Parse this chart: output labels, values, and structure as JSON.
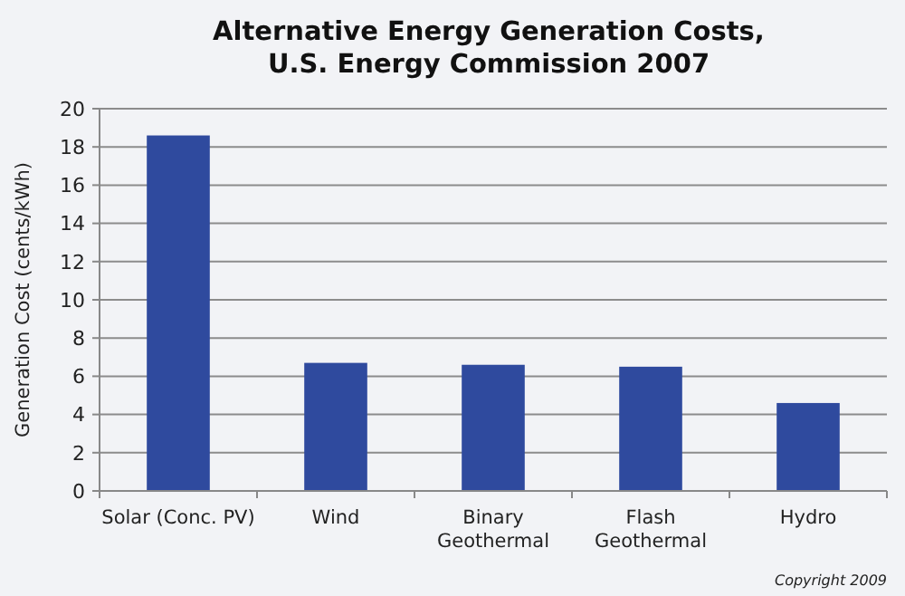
{
  "chart_data": {
    "type": "bar",
    "title": "Alternative Energy Generation Costs, U.S. Energy Commission 2007",
    "ylabel": "Generation Cost (cents/kWh)",
    "categories": [
      "Solar (Conc. PV)",
      "Wind",
      "Binary Geothermal",
      "Flash Geothermal",
      "Hydro"
    ],
    "values": [
      18.6,
      6.7,
      6.6,
      6.5,
      4.6
    ],
    "color": "#2f4a9e",
    "ylim": [
      0,
      20
    ],
    "yticks": [
      0,
      2,
      4,
      6,
      8,
      10,
      12,
      14,
      16,
      18,
      20
    ],
    "grid": "y",
    "annotations": [
      "Copyright 2009"
    ]
  }
}
